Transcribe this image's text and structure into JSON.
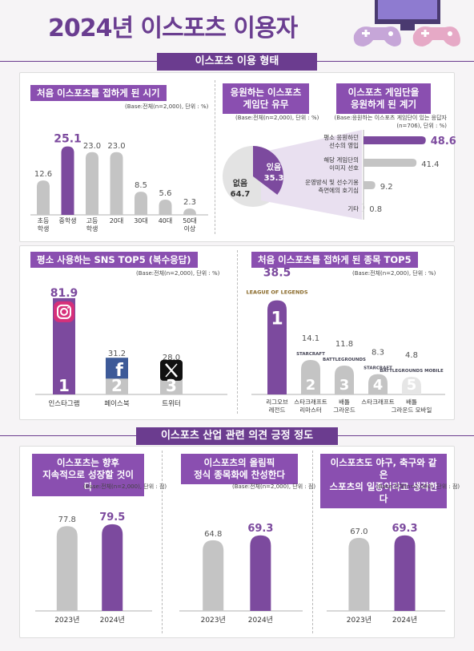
{
  "title": "2024년 이스포츠 이용자",
  "sections": {
    "usage_banner": "이스포츠 이용 형태",
    "industry_banner": "이스포츠 산업 관련 의견 긍정 정도"
  },
  "colors": {
    "purple": "#7c4a9e",
    "gray": "#c4c4c4",
    "banner": "#6b3c8f"
  },
  "charts": {
    "first_contact_age": {
      "label": "처음 이스포츠를 접하게 된 시기",
      "base": "(Base:전체(n=2,000), 단위 : %)"
    },
    "support_team": {
      "label_line1": "응원하는 이스포츠",
      "label_line2": "게임단 유무",
      "base": "(Base:전체(n=2,000), 단위 : %)"
    },
    "support_reason": {
      "label_line1": "이스포츠 게임단을",
      "label_line2": "응원하게 된 계기",
      "base_line1": "(Base:응원하는 이스포츠 게임단이 있는 응답자",
      "base_line2": "(n=706), 단위 : %)"
    },
    "sns_top5": {
      "label": "평소 사용하는 SNS TOP5 (복수응답)",
      "base": "(Base:전체(n=2,000), 단위 : %)"
    },
    "game_top5": {
      "label": "처음 이스포츠를 접하게 된 종목 TOP5",
      "base": "(Base:전체(n=2,000), 단위 : %)"
    },
    "growth": {
      "label_line1": "이스포츠는 향후",
      "label_line2": "지속적으로 성장할 것이다",
      "base": "(Base:전체(n=2,000), 단위 : 점)"
    },
    "olympic": {
      "label_line1": "이스포츠의 올림픽",
      "label_line2": "정식 종목화에 찬성한다",
      "base": "(Base:전체(n=2,000), 단위 : 점)"
    },
    "sport": {
      "label_line1": "이스포츠도 야구, 축구와 같은",
      "label_line2": "스포츠의 일종이라고 생각한다",
      "base": "(Base:전체(n=2,000), 단위 : 점)"
    }
  },
  "chart_data": [
    {
      "type": "bar",
      "title": "처음 이스포츠를 접하게 된 시기",
      "categories": [
        "초등\n학생",
        "중학생",
        "고등\n학생",
        "20대",
        "30대",
        "40대",
        "50대\n이상"
      ],
      "values": [
        12.6,
        25.1,
        23.0,
        23.0,
        8.5,
        5.6,
        2.3
      ],
      "highlight_index": 1,
      "ylim": [
        0,
        30
      ]
    },
    {
      "type": "pie",
      "title": "응원하는 이스포츠 게임단 유무",
      "slices": [
        {
          "label": "있음",
          "value": 35.3
        },
        {
          "label": "없음",
          "value": 64.7
        }
      ]
    },
    {
      "type": "bar",
      "orientation": "horizontal",
      "title": "이스포츠 게임단을 응원하게 된 계기",
      "categories": [
        "평소 응원하던\n선수의 영입",
        "해당 게임단의\n이미지 선호",
        "운영방식 및 선수기용\n측면에의 호기심",
        "기타"
      ],
      "values": [
        48.6,
        41.4,
        9.2,
        0.8
      ],
      "highlight_index": 0,
      "xlim": [
        0,
        50
      ]
    },
    {
      "type": "bar",
      "title": "평소 사용하는 SNS TOP5 (복수응답)",
      "categories": [
        "인스타그램",
        "페이스북",
        "트위터"
      ],
      "ranks": [
        "1",
        "2",
        "3"
      ],
      "icons": [
        "instagram-icon",
        "facebook-icon",
        "x-icon"
      ],
      "values": [
        81.9,
        31.2,
        28.0
      ],
      "ylim": [
        0,
        90
      ]
    },
    {
      "type": "bar",
      "title": "처음 이스포츠를 접하게 된 종목 TOP5",
      "categories": [
        "리그오브\n레전드",
        "스타크래프트\n리마스터",
        "배틀\n그라운드",
        "스타크래프트",
        "배틀\n그라운드 모바일"
      ],
      "ranks": [
        "1",
        "2",
        "3",
        "4",
        "5"
      ],
      "logos": [
        "LEAGUE OF LEGENDS",
        "STARCRAFT",
        "BATTLEGROUNDS",
        "STARCRAFT",
        "BATTLEGROUNDS MOBILE"
      ],
      "values": [
        38.5,
        14.1,
        11.8,
        8.3,
        4.8
      ],
      "ylim": [
        0,
        40
      ]
    },
    {
      "type": "bar",
      "title": "이스포츠는 향후 지속적으로 성장할 것이다",
      "categories": [
        "2023년",
        "2024년"
      ],
      "values": [
        77.8,
        79.5
      ],
      "ylim": [
        0,
        100
      ]
    },
    {
      "type": "bar",
      "title": "이스포츠의 올림픽 정식 종목화에 찬성한다",
      "categories": [
        "2023년",
        "2024년"
      ],
      "values": [
        64.8,
        69.3
      ],
      "ylim": [
        0,
        100
      ]
    },
    {
      "type": "bar",
      "title": "이스포츠도 야구, 축구와 같은 스포츠의 일종이라고 생각한다",
      "categories": [
        "2023년",
        "2024년"
      ],
      "values": [
        67.0,
        69.3
      ],
      "ylim": [
        0,
        100
      ]
    }
  ]
}
